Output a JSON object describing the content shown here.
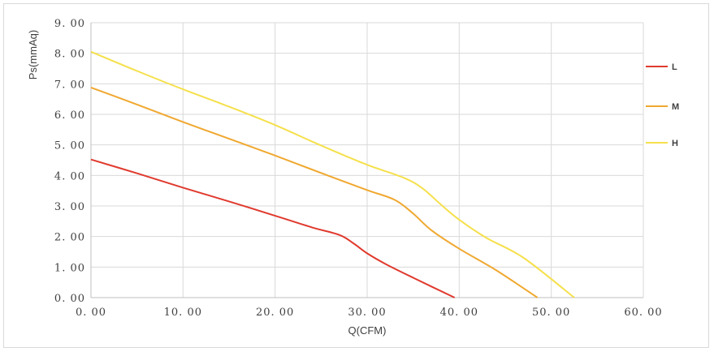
{
  "chart_data": {
    "type": "line",
    "title": "",
    "xlabel": "Q(CFM)",
    "ylabel": "Ps(mmAq)",
    "xlim": [
      0,
      60
    ],
    "ylim": [
      0,
      9
    ],
    "x_ticks": [
      "0. 00",
      "10. 00",
      "20. 00",
      "30. 00",
      "40. 00",
      "50. 00",
      "60. 00"
    ],
    "y_ticks": [
      "0. 00",
      "1. 00",
      "2. 00",
      "3. 00",
      "4. 00",
      "5. 00",
      "6. 00",
      "7. 00",
      "8. 00",
      "9. 00"
    ],
    "grid": true,
    "legend_position": "right",
    "series": [
      {
        "name": "L",
        "color": "#e03a2e",
        "points": [
          [
            0,
            4.52
          ],
          [
            5,
            4.07
          ],
          [
            10,
            3.6
          ],
          [
            15,
            3.15
          ],
          [
            20,
            2.68
          ],
          [
            24,
            2.3
          ],
          [
            27,
            2.05
          ],
          [
            28.5,
            1.78
          ],
          [
            30,
            1.45
          ],
          [
            32,
            1.1
          ],
          [
            35,
            0.65
          ],
          [
            39.5,
            0
          ]
        ]
      },
      {
        "name": "M",
        "color": "#f0a830",
        "points": [
          [
            0,
            6.88
          ],
          [
            5,
            6.32
          ],
          [
            10,
            5.75
          ],
          [
            15,
            5.2
          ],
          [
            20,
            4.65
          ],
          [
            25,
            4.08
          ],
          [
            30,
            3.52
          ],
          [
            33,
            3.2
          ],
          [
            35,
            2.75
          ],
          [
            37,
            2.2
          ],
          [
            40,
            1.6
          ],
          [
            44,
            0.9
          ],
          [
            48.5,
            0
          ]
        ]
      },
      {
        "name": "H",
        "color": "#f5e04c",
        "points": [
          [
            0,
            8.05
          ],
          [
            5,
            7.42
          ],
          [
            10,
            6.82
          ],
          [
            15,
            6.25
          ],
          [
            20,
            5.65
          ],
          [
            25,
            4.98
          ],
          [
            30,
            4.35
          ],
          [
            34,
            3.92
          ],
          [
            36,
            3.58
          ],
          [
            38,
            3.05
          ],
          [
            40,
            2.55
          ],
          [
            43,
            1.95
          ],
          [
            47,
            1.3
          ],
          [
            52.5,
            0
          ]
        ]
      }
    ]
  }
}
